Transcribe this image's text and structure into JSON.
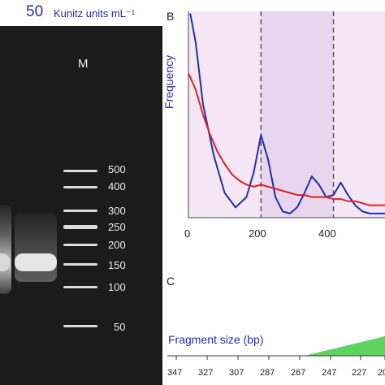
{
  "panel_a": {
    "concentration_value": "50",
    "concentration_unit": "Kunitz units mL⁻¹",
    "marker_lane_label": "M",
    "marker_bands_bp": [
      "500",
      "400",
      "300",
      "250",
      "200",
      "150",
      "100",
      "50"
    ]
  },
  "panel_b": {
    "letter": "B",
    "ylabel": "Frequency",
    "x_ticks": [
      "0",
      "200",
      "400"
    ]
  },
  "panel_c": {
    "letter": "C",
    "fragment_label": "Fragment size (bp)",
    "fragment_ticks": [
      "347",
      "327",
      "307",
      "287",
      "267",
      "247",
      "227",
      "20"
    ]
  },
  "colors": {
    "blue_curve": "#1f2fae",
    "red_curve": "#dd2222",
    "panel_bg": "#f5e6f6",
    "shaded_band": "#e8d6ee",
    "fragment_fill": "#5fd35f"
  },
  "chart_data": {
    "type": "line",
    "title": "",
    "xlabel": "",
    "ylabel": "Frequency",
    "xlim": [
      0,
      560
    ],
    "series": [
      {
        "name": "",
        "color": "#1f2fae",
        "x": [
          5,
          20,
          40,
          70,
          100,
          130,
          160,
          180,
          200,
          220,
          240,
          260,
          280,
          300,
          320,
          340,
          360,
          380,
          400,
          420,
          440,
          460,
          480,
          500,
          520,
          540,
          560
        ],
        "y": [
          0.99,
          0.85,
          0.55,
          0.3,
          0.12,
          0.05,
          0.1,
          0.22,
          0.4,
          0.28,
          0.1,
          0.03,
          0.02,
          0.05,
          0.12,
          0.2,
          0.16,
          0.1,
          0.11,
          0.17,
          0.11,
          0.06,
          0.03,
          0.02,
          0.02,
          0.02,
          0.02
        ]
      },
      {
        "name": "",
        "color": "#dd2222",
        "x": [
          0,
          20,
          40,
          60,
          80,
          100,
          120,
          140,
          160,
          180,
          200,
          220,
          240,
          260,
          280,
          300,
          320,
          340,
          360,
          380,
          400,
          420,
          440,
          460,
          480,
          500,
          520,
          540,
          560
        ],
        "y": [
          0.7,
          0.62,
          0.5,
          0.4,
          0.32,
          0.26,
          0.21,
          0.18,
          0.16,
          0.15,
          0.16,
          0.15,
          0.14,
          0.13,
          0.12,
          0.11,
          0.11,
          0.1,
          0.1,
          0.1,
          0.09,
          0.09,
          0.08,
          0.08,
          0.07,
          0.06,
          0.06,
          0.06,
          0.06
        ]
      }
    ],
    "shaded_region_x": [
      200,
      400
    ],
    "dashed_lines_x": [
      200,
      400
    ]
  }
}
